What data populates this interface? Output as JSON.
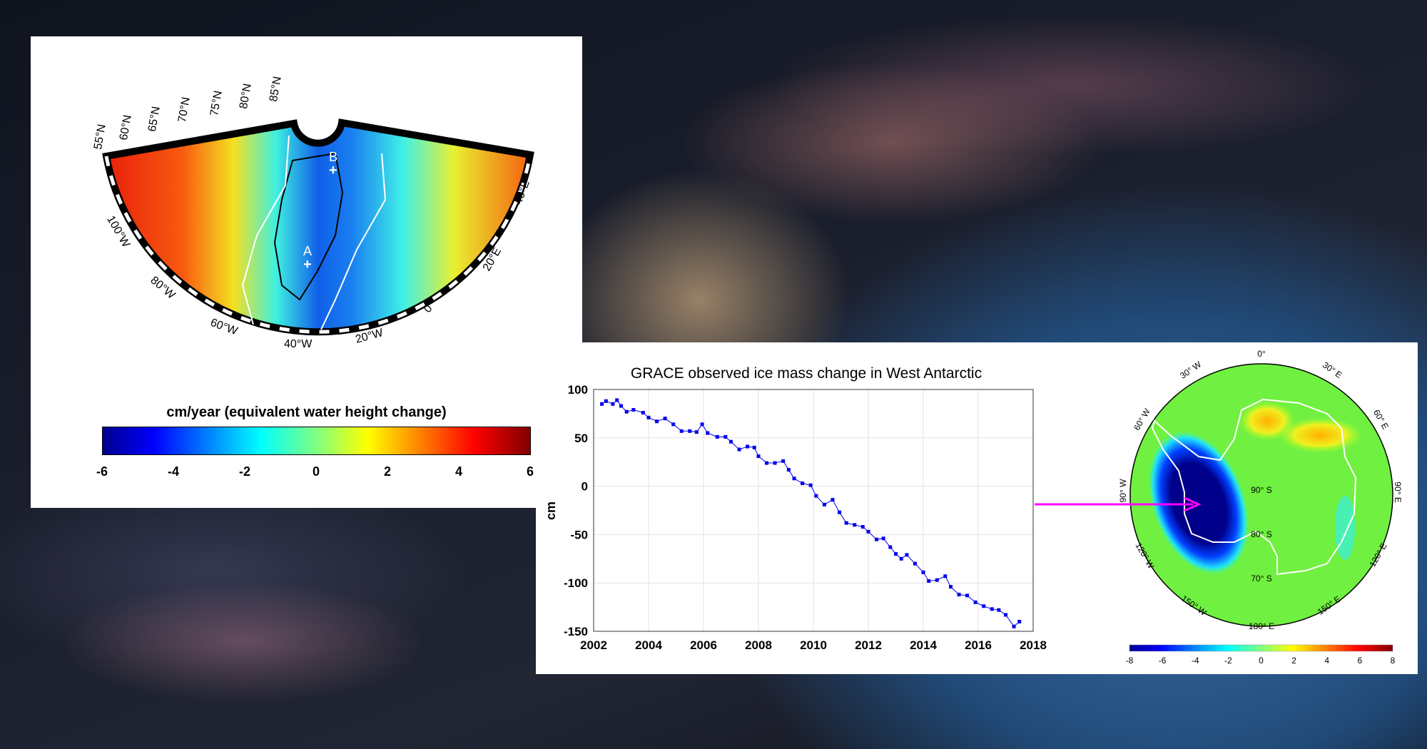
{
  "greenland_map": {
    "lat_labels": [
      "55°N",
      "60°N",
      "65°N",
      "70°N",
      "75°N",
      "80°N",
      "85°N"
    ],
    "lon_labels": [
      "100°W",
      "80°W",
      "60°W",
      "40°W",
      "20°W",
      "0°",
      "20°E",
      "40°E"
    ],
    "markers": [
      "A",
      "B"
    ],
    "colorbar_title": "cm/year (equivalent water height change)",
    "colorbar_ticks": [
      "-6",
      "-4",
      "-2",
      "0",
      "2",
      "4",
      "6"
    ]
  },
  "chart_data": {
    "type": "line",
    "title": "GRACE observed ice mass change in West Antarctic",
    "xlabel": "",
    "ylabel": "cm",
    "xlim": [
      2002,
      2018
    ],
    "ylim": [
      -150,
      100
    ],
    "xticks": [
      "2002",
      "2004",
      "2006",
      "2008",
      "2010",
      "2012",
      "2014",
      "2016",
      "2018"
    ],
    "yticks": [
      "100",
      "50",
      "0",
      "-50",
      "-100",
      "-150"
    ],
    "grid": true,
    "series": [
      {
        "name": "West Antarctic",
        "color": "#0000ee",
        "x": [
          2002.3,
          2002.45,
          2002.7,
          2002.85,
          2003.0,
          2003.2,
          2003.45,
          2003.8,
          2004.0,
          2004.3,
          2004.6,
          2004.9,
          2005.2,
          2005.5,
          2005.75,
          2005.95,
          2006.15,
          2006.5,
          2006.8,
          2007.0,
          2007.3,
          2007.6,
          2007.85,
          2008.0,
          2008.3,
          2008.6,
          2008.9,
          2009.1,
          2009.3,
          2009.6,
          2009.9,
          2010.1,
          2010.4,
          2010.7,
          2010.95,
          2011.2,
          2011.5,
          2011.8,
          2012.0,
          2012.3,
          2012.55,
          2012.8,
          2013.0,
          2013.2,
          2013.4,
          2013.7,
          2014.0,
          2014.2,
          2014.5,
          2014.8,
          2015.0,
          2015.3,
          2015.6,
          2015.9,
          2016.2,
          2016.5,
          2016.75,
          2017.0,
          2017.3,
          2017.5
        ],
        "values": [
          85,
          88,
          85,
          89,
          83,
          77,
          79,
          76,
          71,
          67,
          70,
          64,
          57,
          57,
          56,
          64,
          55,
          51,
          51,
          46,
          38,
          41,
          40,
          31,
          24,
          24,
          26,
          17,
          8,
          3,
          1,
          -10,
          -19,
          -14,
          -27,
          -38,
          -40,
          -42,
          -47,
          -55,
          -54,
          -63,
          -70,
          -75,
          -71,
          -80,
          -89,
          -98,
          -97,
          -93,
          -104,
          -112,
          -113,
          -120,
          -124,
          -127,
          -128,
          -133,
          -145,
          -140
        ]
      }
    ]
  },
  "antarctica_map": {
    "lon_labels": [
      "0°",
      "30° E",
      "60° E",
      "90° E",
      "120° E",
      "150° E",
      "180° E",
      "150° W",
      "120° W",
      "90° W",
      "60° W",
      "30° W"
    ],
    "lat_labels": [
      "90° S",
      "80° S",
      "70° S"
    ],
    "colorbar_ticks": [
      "-8",
      "-6",
      "-4",
      "-2",
      "0",
      "2",
      "4",
      "6",
      "8"
    ],
    "arrow_color": "#ff00ff"
  }
}
